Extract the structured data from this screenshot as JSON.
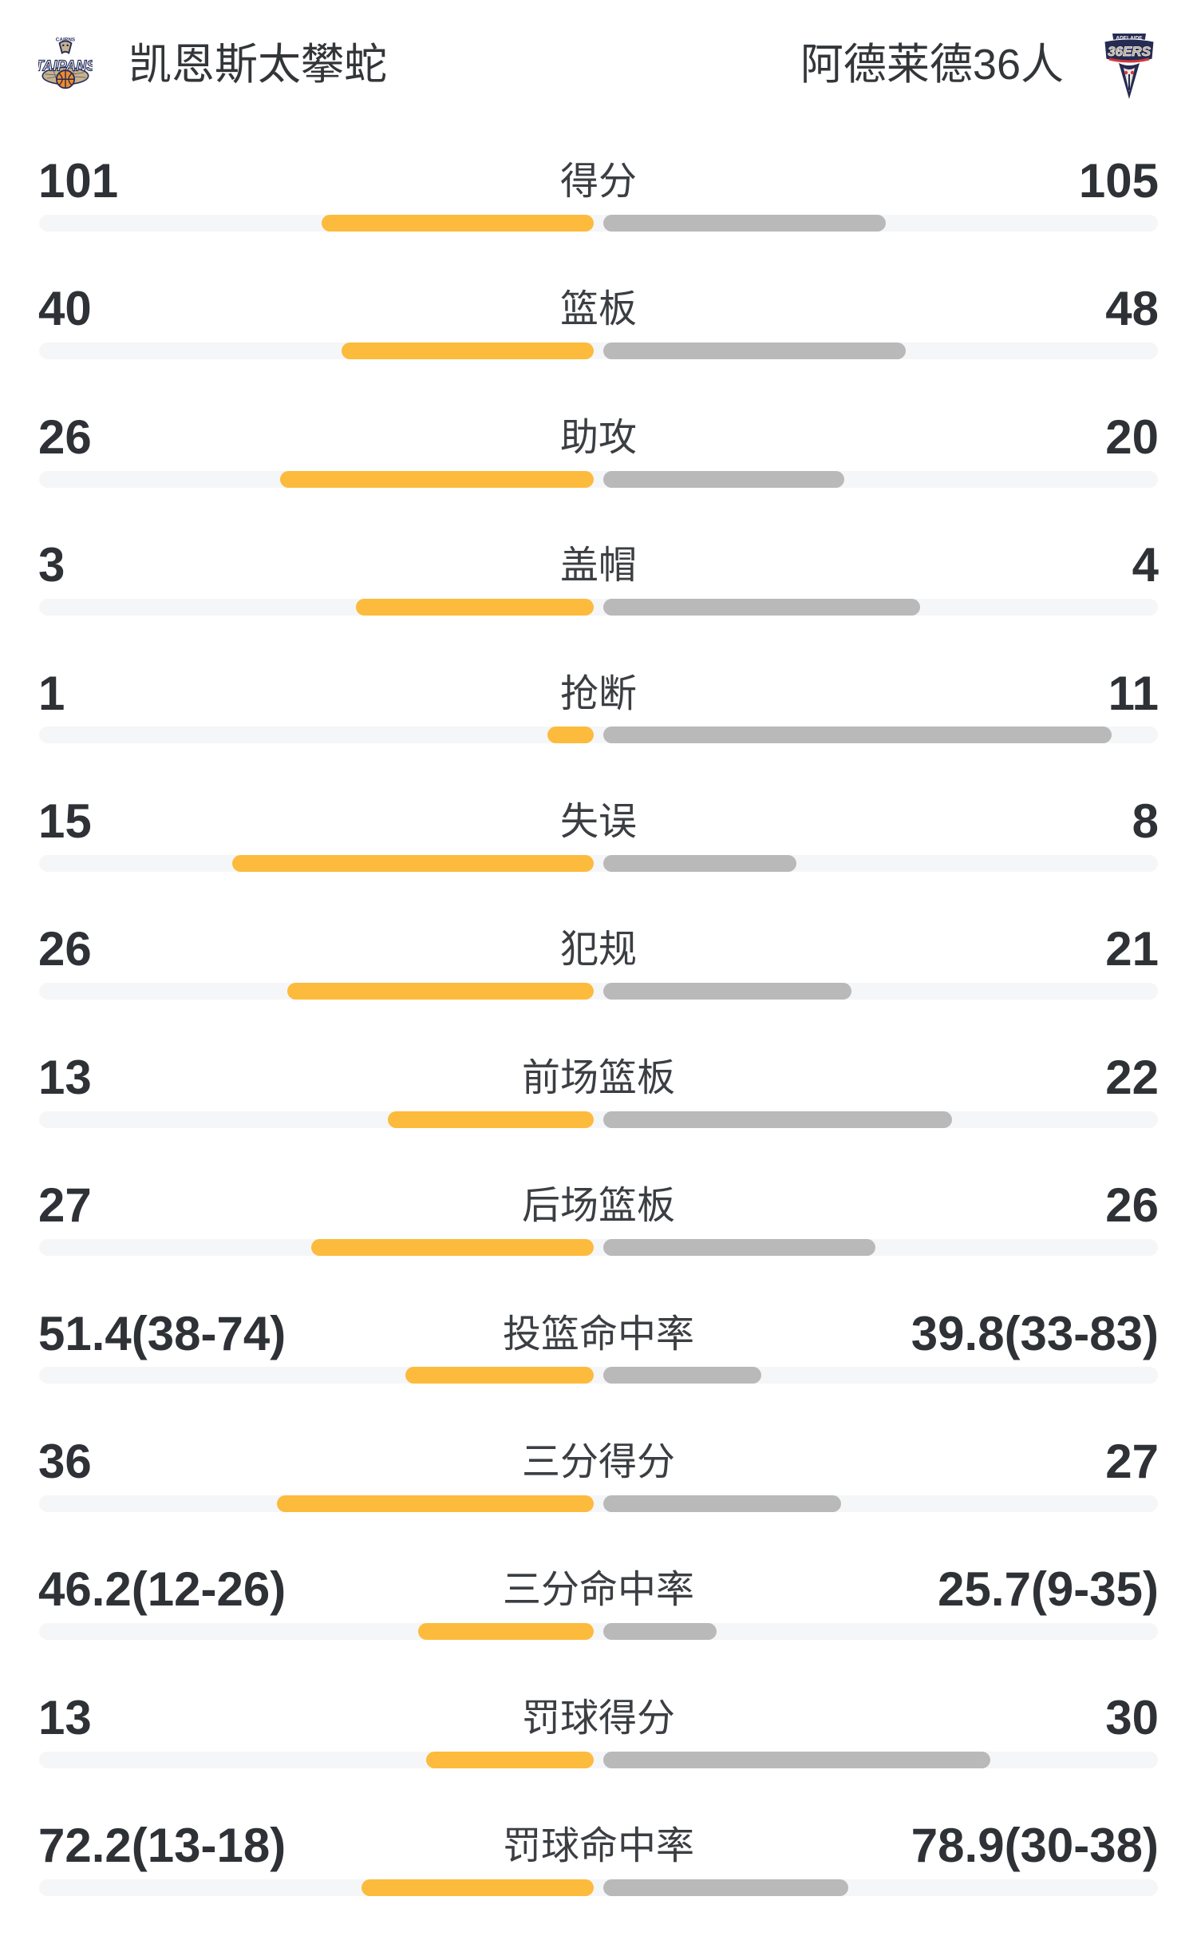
{
  "header": {
    "home": {
      "name": "凯恩斯太攀蛇",
      "logo": "taipans-logo"
    },
    "away": {
      "name": "阿德莱德36人",
      "logo": "36ers-logo"
    }
  },
  "colors": {
    "home_bar": "#fcbb3c",
    "away_bar": "#b9b9b9",
    "track": "#f5f6f8"
  },
  "chart_data": {
    "type": "bar",
    "note": "head-to-head stat comparison, home bar grows left from center, away bar grows right",
    "stats": [
      {
        "label": "得分",
        "left": "101",
        "right": "105",
        "left_num": 101,
        "right_num": 105,
        "percent": false
      },
      {
        "label": "篮板",
        "left": "40",
        "right": "48",
        "left_num": 40,
        "right_num": 48,
        "percent": false
      },
      {
        "label": "助攻",
        "left": "26",
        "right": "20",
        "left_num": 26,
        "right_num": 20,
        "percent": false
      },
      {
        "label": "盖帽",
        "left": "3",
        "right": "4",
        "left_num": 3,
        "right_num": 4,
        "percent": false
      },
      {
        "label": "抢断",
        "left": "1",
        "right": "11",
        "left_num": 1,
        "right_num": 11,
        "percent": false
      },
      {
        "label": "失误",
        "left": "15",
        "right": "8",
        "left_num": 15,
        "right_num": 8,
        "percent": false
      },
      {
        "label": "犯规",
        "left": "26",
        "right": "21",
        "left_num": 26,
        "right_num": 21,
        "percent": false
      },
      {
        "label": "前场篮板",
        "left": "13",
        "right": "22",
        "left_num": 13,
        "right_num": 22,
        "percent": false
      },
      {
        "label": "后场篮板",
        "left": "27",
        "right": "26",
        "left_num": 27,
        "right_num": 26,
        "percent": false
      },
      {
        "label": "投篮命中率",
        "left": "51.4(38-74)",
        "right": "39.8(33-83)",
        "left_num": 51.4,
        "right_num": 39.8,
        "percent": true
      },
      {
        "label": "三分得分",
        "left": "36",
        "right": "27",
        "left_num": 36,
        "right_num": 27,
        "percent": false
      },
      {
        "label": "三分命中率",
        "left": "46.2(12-26)",
        "right": "25.7(9-35)",
        "left_num": 46.2,
        "right_num": 25.7,
        "percent": true
      },
      {
        "label": "罚球得分",
        "left": "13",
        "right": "30",
        "left_num": 13,
        "right_num": 30,
        "percent": false
      },
      {
        "label": "罚球命中率",
        "left": "72.2(13-18)",
        "right": "78.9(30-38)",
        "left_num": 72.2,
        "right_num": 78.9,
        "percent": true
      }
    ]
  }
}
